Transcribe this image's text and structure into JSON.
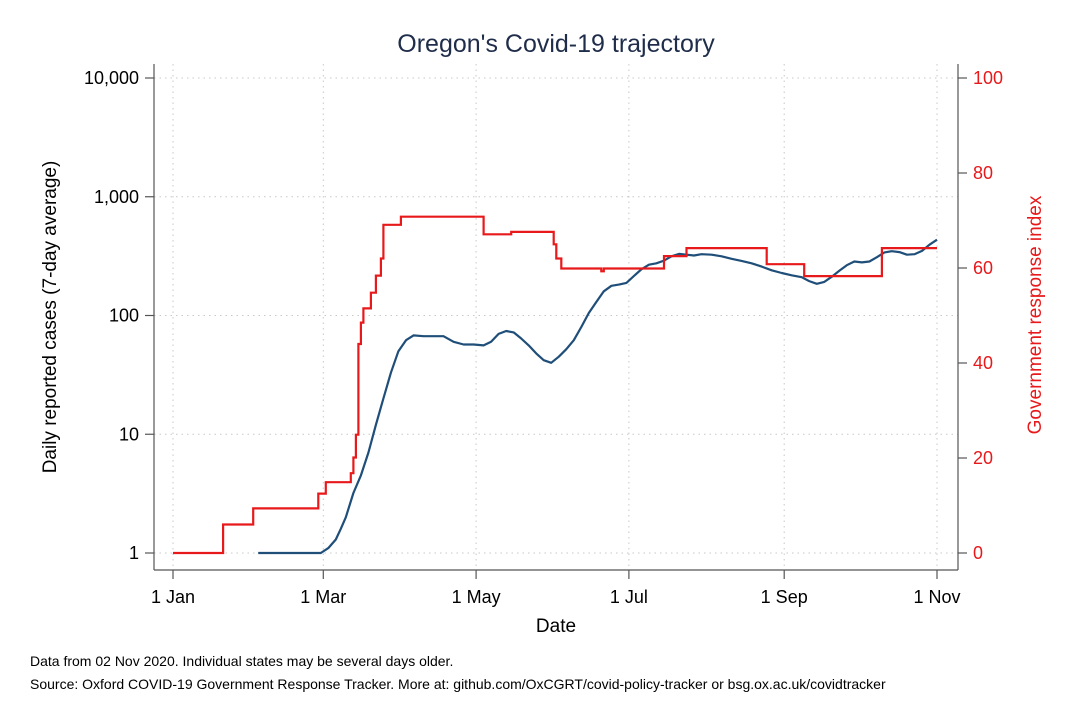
{
  "chart_data": {
    "type": "line",
    "title": "Oregon's Covid-19 trajectory",
    "xlabel": "Date",
    "ylabel": "Daily reported cases (7-day average)",
    "ylabel_right": "Government response index",
    "x_ticks": [
      "1 Jan",
      "1 Mar",
      "1 May",
      "1 Jul",
      "1 Sep",
      "1 Nov"
    ],
    "y_ticks": [
      "1",
      "10",
      "100",
      "1,000",
      "10,000"
    ],
    "y_ticks_right": [
      "0",
      "20",
      "40",
      "60",
      "80",
      "100"
    ],
    "yscale": "log",
    "ylim": [
      1,
      10000
    ],
    "ylim_right": [
      0,
      100
    ],
    "xlim": [
      "2020-01-01",
      "2020-11-01"
    ],
    "grid": true,
    "colors": {
      "cases": "#1f4e79",
      "response": "#e8191b",
      "title": "#1f2d4a"
    },
    "series": [
      {
        "name": "Daily reported cases (7-day average)",
        "axis": "left",
        "points": [
          [
            "2020-02-04",
            1
          ],
          [
            "2020-02-29",
            1
          ],
          [
            "2020-03-03",
            1.1
          ],
          [
            "2020-03-06",
            1.3
          ],
          [
            "2020-03-08",
            1.6
          ],
          [
            "2020-03-10",
            2
          ],
          [
            "2020-03-13",
            3.2
          ],
          [
            "2020-03-16",
            4.5
          ],
          [
            "2020-03-19",
            7
          ],
          [
            "2020-03-22",
            12
          ],
          [
            "2020-03-25",
            20
          ],
          [
            "2020-03-28",
            33
          ],
          [
            "2020-03-31",
            50
          ],
          [
            "2020-04-03",
            62
          ],
          [
            "2020-04-06",
            68
          ],
          [
            "2020-04-10",
            67
          ],
          [
            "2020-04-14",
            67
          ],
          [
            "2020-04-18",
            67
          ],
          [
            "2020-04-22",
            60
          ],
          [
            "2020-04-26",
            57
          ],
          [
            "2020-04-30",
            57
          ],
          [
            "2020-05-04",
            56
          ],
          [
            "2020-05-07",
            60
          ],
          [
            "2020-05-10",
            70
          ],
          [
            "2020-05-13",
            74
          ],
          [
            "2020-05-16",
            72
          ],
          [
            "2020-05-19",
            64
          ],
          [
            "2020-05-22",
            56
          ],
          [
            "2020-05-25",
            48
          ],
          [
            "2020-05-28",
            42
          ],
          [
            "2020-05-31",
            40
          ],
          [
            "2020-06-03",
            45
          ],
          [
            "2020-06-06",
            52
          ],
          [
            "2020-06-09",
            62
          ],
          [
            "2020-06-12",
            80
          ],
          [
            "2020-06-15",
            105
          ],
          [
            "2020-06-18",
            130
          ],
          [
            "2020-06-21",
            160
          ],
          [
            "2020-06-24",
            178
          ],
          [
            "2020-06-27",
            182
          ],
          [
            "2020-06-30",
            188
          ],
          [
            "2020-07-03",
            215
          ],
          [
            "2020-07-06",
            245
          ],
          [
            "2020-07-09",
            268
          ],
          [
            "2020-07-12",
            275
          ],
          [
            "2020-07-15",
            290
          ],
          [
            "2020-07-18",
            315
          ],
          [
            "2020-07-21",
            330
          ],
          [
            "2020-07-24",
            325
          ],
          [
            "2020-07-27",
            320
          ],
          [
            "2020-07-30",
            328
          ],
          [
            "2020-08-03",
            325
          ],
          [
            "2020-08-07",
            315
          ],
          [
            "2020-08-11",
            300
          ],
          [
            "2020-08-15",
            288
          ],
          [
            "2020-08-19",
            275
          ],
          [
            "2020-08-23",
            258
          ],
          [
            "2020-08-27",
            240
          ],
          [
            "2020-08-31",
            228
          ],
          [
            "2020-09-04",
            218
          ],
          [
            "2020-09-08",
            210
          ],
          [
            "2020-09-11",
            195
          ],
          [
            "2020-09-14",
            185
          ],
          [
            "2020-09-17",
            192
          ],
          [
            "2020-09-20",
            212
          ],
          [
            "2020-09-23",
            238
          ],
          [
            "2020-09-26",
            265
          ],
          [
            "2020-09-29",
            285
          ],
          [
            "2020-10-02",
            280
          ],
          [
            "2020-10-05",
            285
          ],
          [
            "2020-10-08",
            310
          ],
          [
            "2020-10-11",
            340
          ],
          [
            "2020-10-14",
            348
          ],
          [
            "2020-10-17",
            342
          ],
          [
            "2020-10-20",
            325
          ],
          [
            "2020-10-23",
            328
          ],
          [
            "2020-10-26",
            350
          ],
          [
            "2020-10-29",
            395
          ],
          [
            "2020-11-01",
            435
          ]
        ]
      },
      {
        "name": "Government response index",
        "axis": "right",
        "step": true,
        "points": [
          [
            "2020-01-01",
            0
          ],
          [
            "2020-01-21",
            6
          ],
          [
            "2020-02-02",
            9.4
          ],
          [
            "2020-02-28",
            12.5
          ],
          [
            "2020-03-02",
            14.9
          ],
          [
            "2020-03-12",
            16.8
          ],
          [
            "2020-03-13",
            20.1
          ],
          [
            "2020-03-14",
            24.9
          ],
          [
            "2020-03-15",
            44
          ],
          [
            "2020-03-16",
            48.5
          ],
          [
            "2020-03-17",
            51.5
          ],
          [
            "2020-03-20",
            54.8
          ],
          [
            "2020-03-22",
            58.4
          ],
          [
            "2020-03-24",
            62
          ],
          [
            "2020-03-25",
            69.1
          ],
          [
            "2020-04-01",
            70.8
          ],
          [
            "2020-05-04",
            67.1
          ],
          [
            "2020-05-15",
            67.6
          ],
          [
            "2020-06-01",
            65
          ],
          [
            "2020-06-02",
            62
          ],
          [
            "2020-06-04",
            59.9
          ],
          [
            "2020-06-20",
            59.3
          ],
          [
            "2020-06-21",
            59.9
          ],
          [
            "2020-07-15",
            62.5
          ],
          [
            "2020-07-24",
            64.2
          ],
          [
            "2020-08-25",
            60.8
          ],
          [
            "2020-09-09",
            58.3
          ],
          [
            "2020-10-10",
            64.2
          ],
          [
            "2020-11-01",
            64.2
          ]
        ]
      }
    ]
  },
  "footnotes": [
    "Data from 02 Nov 2020. Individual states may be several days older.",
    "Source: Oxford COVID-19 Government Response Tracker. More at: github.com/OxCGRT/covid-policy-tracker or bsg.ox.ac.uk/covidtracker"
  ]
}
